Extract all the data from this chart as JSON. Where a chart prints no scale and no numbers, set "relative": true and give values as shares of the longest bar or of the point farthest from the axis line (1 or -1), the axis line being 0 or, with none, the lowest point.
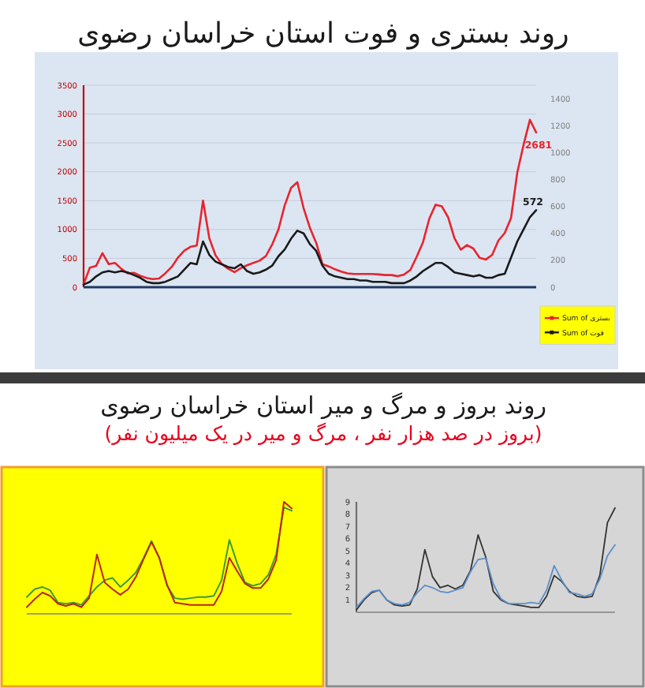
{
  "chart_data": [
    {
      "type": "line",
      "title": "روند بستری و فوت استان خراسان رضوی",
      "categories": [
        null,
        null,
        null,
        null,
        null,
        null,
        null,
        null,
        null,
        null,
        null,
        null,
        null,
        null,
        null,
        null,
        null,
        null,
        null,
        null,
        null,
        null,
        null,
        null,
        null,
        null,
        null,
        null,
        null,
        null,
        null,
        null,
        null,
        null,
        null,
        null,
        null,
        null,
        null,
        null,
        null,
        null,
        null,
        null,
        null,
        null,
        null,
        null,
        null,
        null,
        null,
        null,
        null,
        null,
        null,
        null,
        null,
        null,
        null,
        null,
        null,
        null,
        null,
        null,
        null,
        null,
        null,
        null,
        null,
        null,
        null,
        null,
        null
      ],
      "ylim": [
        0,
        3500
      ],
      "yticks": [
        0,
        500,
        1000,
        1500,
        2000,
        2500,
        3000,
        3500
      ],
      "y2lim": [
        0,
        1500
      ],
      "y2ticks": [
        0,
        200,
        400,
        600,
        800,
        1000,
        1200,
        1400
      ],
      "grid": "y",
      "legend": "bottom right",
      "series": [
        {
          "name": "Sum of بستری",
          "color": "#e8242e",
          "values": [
            50,
            340,
            370,
            590,
            400,
            420,
            320,
            240,
            250,
            200,
            160,
            140,
            150,
            240,
            350,
            510,
            630,
            700,
            720,
            1500,
            850,
            550,
            400,
            320,
            260,
            330,
            380,
            420,
            460,
            540,
            740,
            1000,
            1420,
            1720,
            1820,
            1370,
            1030,
            770,
            400,
            360,
            310,
            270,
            240,
            230,
            230,
            230,
            230,
            220,
            210,
            210,
            190,
            220,
            300,
            530,
            780,
            1190,
            1430,
            1400,
            1210,
            850,
            650,
            730,
            670,
            510,
            480,
            560,
            810,
            940,
            1200,
            1990,
            2470,
            2900,
            2681
          ],
          "value_labels": [
            null,
            null,
            null,
            null,
            null,
            null,
            null,
            null,
            null,
            null,
            null,
            null,
            null,
            null,
            null,
            null,
            null,
            null,
            null,
            null,
            null,
            null,
            null,
            null,
            null,
            null,
            null,
            null,
            null,
            null,
            null,
            null,
            null,
            null,
            null,
            null,
            null,
            null,
            null,
            null,
            null,
            null,
            null,
            null,
            null,
            null,
            null,
            null,
            null,
            null,
            null,
            null,
            null,
            null,
            null,
            null,
            null,
            null,
            null,
            null,
            null,
            null,
            null,
            null,
            null,
            null,
            null,
            null,
            null,
            null,
            null,
            null,
            "2681"
          ]
        },
        {
          "name": "Sum of فوت",
          "color": "#1a1a1a",
          "axis": "y2",
          "values": [
            20,
            40,
            80,
            110,
            120,
            110,
            120,
            110,
            90,
            70,
            40,
            30,
            30,
            40,
            60,
            80,
            130,
            180,
            170,
            340,
            240,
            190,
            170,
            150,
            140,
            170,
            120,
            100,
            110,
            130,
            160,
            230,
            280,
            360,
            420,
            400,
            320,
            270,
            160,
            100,
            80,
            70,
            60,
            60,
            50,
            50,
            40,
            40,
            40,
            30,
            30,
            30,
            50,
            80,
            120,
            150,
            180,
            180,
            150,
            110,
            100,
            90,
            80,
            90,
            70,
            70,
            90,
            100,
            220,
            340,
            430,
            520,
            572
          ],
          "value_labels": [
            null,
            null,
            null,
            null,
            null,
            null,
            null,
            null,
            null,
            null,
            null,
            null,
            null,
            null,
            null,
            null,
            null,
            null,
            null,
            null,
            null,
            null,
            null,
            null,
            null,
            null,
            null,
            null,
            null,
            null,
            null,
            null,
            null,
            null,
            null,
            null,
            null,
            null,
            null,
            null,
            null,
            null,
            null,
            null,
            null,
            null,
            null,
            null,
            null,
            null,
            null,
            null,
            null,
            null,
            null,
            null,
            null,
            null,
            null,
            null,
            null,
            null,
            null,
            null,
            null,
            null,
            null,
            null,
            null,
            null,
            null,
            null,
            "572"
          ]
        }
      ]
    },
    {
      "type": "other",
      "title": "روند بروز و مرگ و میر استان خراسان رضوی",
      "subtitle": "(بروز در صد هزار نفر ، مرگ و میر در یک میلیون نفر)"
    },
    {
      "type": "line",
      "relative": true,
      "categories": [
        null,
        null,
        null,
        null,
        null,
        null,
        null,
        null,
        null,
        null,
        null,
        null,
        null,
        null,
        null,
        null,
        null,
        null,
        null,
        null,
        null,
        null,
        null,
        null,
        null,
        null,
        null,
        null,
        null,
        null,
        null,
        null,
        null,
        null,
        null
      ],
      "series": [
        {
          "color": "#3f9a35",
          "values": [
            0.15,
            0.22,
            0.24,
            0.21,
            0.1,
            0.09,
            0.1,
            0.08,
            0.16,
            0.24,
            0.3,
            0.32,
            0.24,
            0.3,
            0.37,
            0.5,
            0.65,
            0.5,
            0.25,
            0.14,
            0.13,
            0.14,
            0.15,
            0.15,
            0.16,
            0.3,
            0.66,
            0.45,
            0.28,
            0.25,
            0.27,
            0.35,
            0.53,
            0.95,
            0.92
          ]
        },
        {
          "color": "#b8261e",
          "values": [
            0.06,
            0.13,
            0.19,
            0.16,
            0.09,
            0.07,
            0.09,
            0.06,
            0.14,
            0.53,
            0.28,
            0.22,
            0.17,
            0.22,
            0.33,
            0.49,
            0.64,
            0.5,
            0.26,
            0.1,
            0.09,
            0.08,
            0.08,
            0.08,
            0.08,
            0.2,
            0.5,
            0.38,
            0.27,
            0.23,
            0.23,
            0.31,
            0.48,
            1.0,
            0.94
          ]
        }
      ]
    },
    {
      "type": "line",
      "categories": [
        null,
        null,
        null,
        null,
        null,
        null,
        null,
        null,
        null,
        null,
        null,
        null,
        null,
        null,
        null,
        null,
        null,
        null,
        null,
        null,
        null,
        null,
        null,
        null,
        null,
        null,
        null,
        null,
        null,
        null,
        null,
        null,
        null,
        null,
        null
      ],
      "ylim": [
        0,
        9
      ],
      "yticks": [
        1,
        2,
        3,
        4,
        5,
        6,
        7,
        8,
        9
      ],
      "series": [
        {
          "color": "#333333",
          "values": [
            0.2,
            1.0,
            1.6,
            1.8,
            1.0,
            0.6,
            0.5,
            0.6,
            1.9,
            5.1,
            2.9,
            2.0,
            2.2,
            1.9,
            2.2,
            3.4,
            6.3,
            4.5,
            1.7,
            1.0,
            0.7,
            0.6,
            0.5,
            0.4,
            0.4,
            1.3,
            3.0,
            2.5,
            1.7,
            1.3,
            1.2,
            1.3,
            3.0,
            7.3,
            8.5
          ]
        },
        {
          "color": "#5b8fc9",
          "values": [
            0.4,
            1.1,
            1.7,
            1.8,
            1.0,
            0.7,
            0.6,
            0.8,
            1.6,
            2.2,
            2.0,
            1.7,
            1.6,
            1.8,
            2.0,
            3.3,
            4.3,
            4.4,
            2.3,
            1.1,
            0.7,
            0.7,
            0.7,
            0.8,
            0.7,
            1.8,
            3.8,
            2.6,
            1.6,
            1.5,
            1.3,
            1.5,
            2.7,
            4.6,
            5.5
          ]
        }
      ]
    }
  ]
}
